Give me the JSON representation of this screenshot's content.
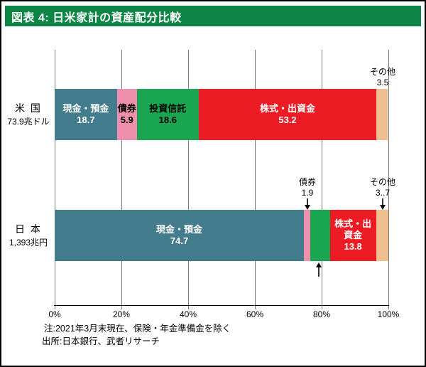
{
  "header": {
    "title": "図表 4: 日米家計の資産配分比較",
    "bg_color": "#0d8544",
    "text_color": "#ffffff"
  },
  "chart_data": {
    "type": "bar",
    "orientation": "horizontal",
    "stacked": true,
    "title": "日米家計の資産配分比較",
    "categories": [
      "米 国",
      "日 本"
    ],
    "category_sublabels": [
      "73.9兆ドル",
      "1,393兆円"
    ],
    "xlim": [
      0,
      100
    ],
    "x_ticks": [
      "0%",
      "20%",
      "40%",
      "60%",
      "80%",
      "100%"
    ],
    "grid": true,
    "legend": "none",
    "series": [
      {
        "name": "現金・預金",
        "values": [
          18.7,
          74.7
        ],
        "color": "#437d8d",
        "text_color": "#ffffff",
        "label_inside": [
          true,
          true
        ]
      },
      {
        "name": "債券",
        "values": [
          5.9,
          1.9
        ],
        "color": "#ef8fae",
        "text_color": "#000000",
        "label_inside": [
          true,
          false
        ]
      },
      {
        "name": "投資信託",
        "values": [
          18.6,
          5.9
        ],
        "color": "#1aa550",
        "text_color": "#000000",
        "label_inside": [
          true,
          false
        ]
      },
      {
        "name": "株式・出資金",
        "values": [
          53.2,
          13.8
        ],
        "color": "#ed1c24",
        "text_color": "#ffffff",
        "label_inside": [
          true,
          true
        ]
      },
      {
        "name": "その他",
        "values": [
          3.5,
          3.7
        ],
        "color": "#efc08e",
        "text_color": "#000000",
        "label_inside": [
          false,
          false
        ]
      }
    ]
  },
  "annotations": {
    "us_other": {
      "line1": "その他",
      "line2": "3.5"
    },
    "jp_bonds": {
      "line1": "債券",
      "line2": "1.9"
    },
    "jp_other": {
      "line1": "その他",
      "line2": "3..7"
    }
  },
  "icons": {
    "down_arrow": "↓",
    "up_arrow": "↑"
  },
  "notes": [
    "注:2021年3月末現在、保険・年金準備金を除く",
    "出所:日本銀行、武者リサーチ"
  ]
}
